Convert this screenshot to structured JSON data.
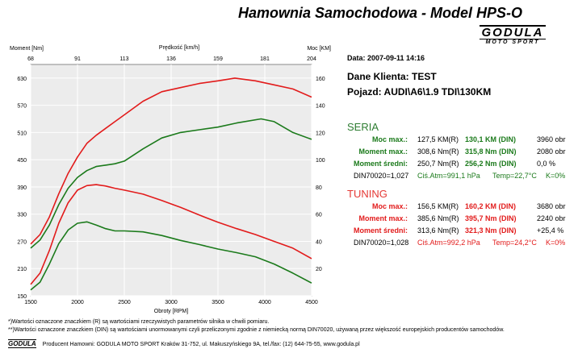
{
  "header": {
    "title": "Hamownia Samochodowa   -   Model HPS-O",
    "logo_main": "GODULA",
    "logo_sub": "MOTO SPORT"
  },
  "info": {
    "date": "Data: 2007-09-11  14:16",
    "client": "Dane Klienta: TEST",
    "vehicle": "Pojazd: AUDI\\A6\\1.9 TDI\\130KM"
  },
  "seria": {
    "title": "SERIA",
    "rows": [
      {
        "label": "Moc max.:",
        "val_r": "127,5 KM(R)",
        "val_din": "130,1 KM (DIN)",
        "extra": "3960 obr"
      },
      {
        "label": "Moment max.:",
        "val_r": "308,6 Nm(R)",
        "val_din": "315,8 Nm (DIN)",
        "extra": "2080 obr"
      },
      {
        "label": "Moment średni:",
        "val_r": "250,7 Nm(R)",
        "val_din": "256,2 Nm (DIN)",
        "extra": "0,0 %"
      }
    ],
    "din": "DIN70020=1,027",
    "atm": "Ciś.Atm=991,1 hPa",
    "temp": "Temp=22,7°C",
    "k": "K=0%"
  },
  "tuning": {
    "title": "TUNING",
    "rows": [
      {
        "label": "Moc max.:",
        "val_r": "156,5 KM(R)",
        "val_din": "160,2 KM (DIN)",
        "extra": "3680 obr"
      },
      {
        "label": "Moment max.:",
        "val_r": "385,6 Nm(R)",
        "val_din": "395,7 Nm (DIN)",
        "extra": "2240 obr"
      },
      {
        "label": "Moment średni:",
        "val_r": "313,6 Nm(R)",
        "val_din": "321,3 Nm (DIN)",
        "extra": "+25,4 %"
      }
    ],
    "din": "DIN70020=1,028",
    "atm": "Ciś.Atm=992,2 hPa",
    "temp": "Temp=24,2°C",
    "k": "K=0%"
  },
  "footnotes": {
    "line1": "*)Wartości oznaczone znaczkiem (R) są wartościami rzeczywistych parametrów silnika w chwili pomiaru.",
    "line2": "**)Wartości oznaczone znaczkiem (DIN) są wartościami unormowanymi czyli przeliczonymi zgodnie z niemiecką normą DIN70020, używaną przez większość europejskich producentów samochodów."
  },
  "footer": {
    "logo": "GODULA",
    "text": "Producent Hamowni: GODULA MOTO SPORT Kraków 31-752, ul. Makuszyńskiego 9A, tel./fax: (12) 644-75-55, www.godula.pl"
  },
  "colors": {
    "seria": "#1b7a1b",
    "tuning": "#e21b1b",
    "plot_bg": "#ececec",
    "grid": "#ffffff"
  },
  "chart_data": {
    "type": "line",
    "title": "",
    "xlabel": "Obroty [RPM]",
    "ylabel_left": "Moment [Nm]",
    "ylabel_right": "Moc [KM]",
    "top_axis_label": "Prędkość [km/h]",
    "xlim": [
      1500,
      4500
    ],
    "ylim_left": [
      150,
      660
    ],
    "ylim_right": [
      0,
      170
    ],
    "x_ticks": [
      1500,
      2000,
      2500,
      3000,
      3500,
      4000,
      4500
    ],
    "y_left_ticks": [
      150,
      210,
      270,
      330,
      390,
      450,
      510,
      570,
      630
    ],
    "y_right_ticks": [
      20,
      40,
      60,
      80,
      100,
      120,
      140,
      160
    ],
    "top_ticks": [
      "68",
      "91",
      "113",
      "136",
      "159",
      "181",
      "204"
    ],
    "grid": true,
    "series": [
      {
        "name": "TUNING",
        "axis": "left",
        "color": "#e21b1b",
        "x": [
          1500,
          1600,
          1700,
          1800,
          1900,
          2000,
          2100,
          2200,
          2300,
          2400,
          2500,
          2700,
          2900,
          3100,
          3300,
          3500,
          3700,
          3900,
          4100,
          4300,
          4500
        ],
        "y": [
          175,
          200,
          250,
          310,
          355,
          383,
          393,
          395,
          392,
          387,
          383,
          374,
          360,
          345,
          328,
          312,
          298,
          285,
          270,
          255,
          232
        ]
      },
      {
        "name": "SERIA",
        "axis": "left",
        "color": "#1b7a1b",
        "x": [
          1500,
          1600,
          1700,
          1800,
          1900,
          2000,
          2100,
          2200,
          2300,
          2400,
          2500,
          2700,
          2900,
          3100,
          3300,
          3500,
          3700,
          3900,
          4100,
          4300,
          4500
        ],
        "y": [
          163,
          180,
          220,
          265,
          295,
          310,
          313,
          306,
          298,
          293,
          293,
          291,
          283,
          272,
          263,
          253,
          245,
          236,
          220,
          200,
          178
        ]
      },
      {
        "name": "TUNING",
        "axis": "right",
        "color": "#e21b1b",
        "x": [
          1500,
          1600,
          1700,
          1800,
          1900,
          2000,
          2100,
          2200,
          2300,
          2400,
          2500,
          2700,
          2900,
          3100,
          3300,
          3500,
          3680,
          3900,
          4100,
          4300,
          4500
        ],
        "y": [
          38,
          45,
          58,
          75,
          90,
          102,
          112,
          118,
          123,
          128,
          133,
          143,
          150,
          153,
          156,
          158,
          160,
          158,
          155,
          152,
          146
        ]
      },
      {
        "name": "SERIA",
        "axis": "right",
        "color": "#1b7a1b",
        "x": [
          1500,
          1600,
          1700,
          1800,
          1900,
          2000,
          2100,
          2200,
          2300,
          2400,
          2500,
          2700,
          2900,
          3100,
          3300,
          3500,
          3700,
          3960,
          4100,
          4300,
          4500
        ],
        "y": [
          35,
          41,
          52,
          67,
          79,
          87,
          92,
          95,
          96,
          97,
          99,
          108,
          116,
          120,
          122,
          124,
          127,
          130,
          128,
          120,
          115
        ]
      }
    ]
  }
}
